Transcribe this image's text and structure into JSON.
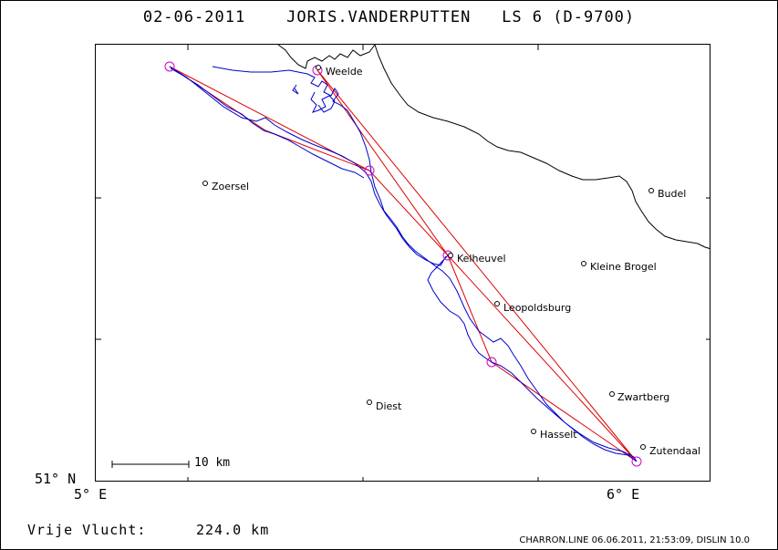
{
  "header": {
    "date": "02-06-2011",
    "pilot": "JORIS.VANDERPUTTEN",
    "glider": "LS 6 (D-9700)"
  },
  "axes": {
    "lat_label": "51° N",
    "lon_left_label": "5° E",
    "lon_right_label": "6° E"
  },
  "scale": {
    "label": "10 km"
  },
  "distance": {
    "label": "Vrije Vlucht:",
    "value": "224.0 km"
  },
  "footer": {
    "text": "CHARRON.LINE 06.06.2011, 21:53:09, DISLIN 10.0"
  },
  "colors": {
    "track": "#0000cc",
    "task": "#dd0000",
    "turnpoint": "#cc00cc",
    "border": "#000000"
  },
  "places": [
    {
      "name": "Weelde"
    },
    {
      "name": "Zoersel"
    },
    {
      "name": "Budel"
    },
    {
      "name": "Kelheuvel"
    },
    {
      "name": "Kleine Brogel"
    },
    {
      "name": "Leopoldsburg"
    },
    {
      "name": "Diest"
    },
    {
      "name": "Zwartberg"
    },
    {
      "name": "Hasselt"
    },
    {
      "name": "Zutendaal"
    }
  ]
}
